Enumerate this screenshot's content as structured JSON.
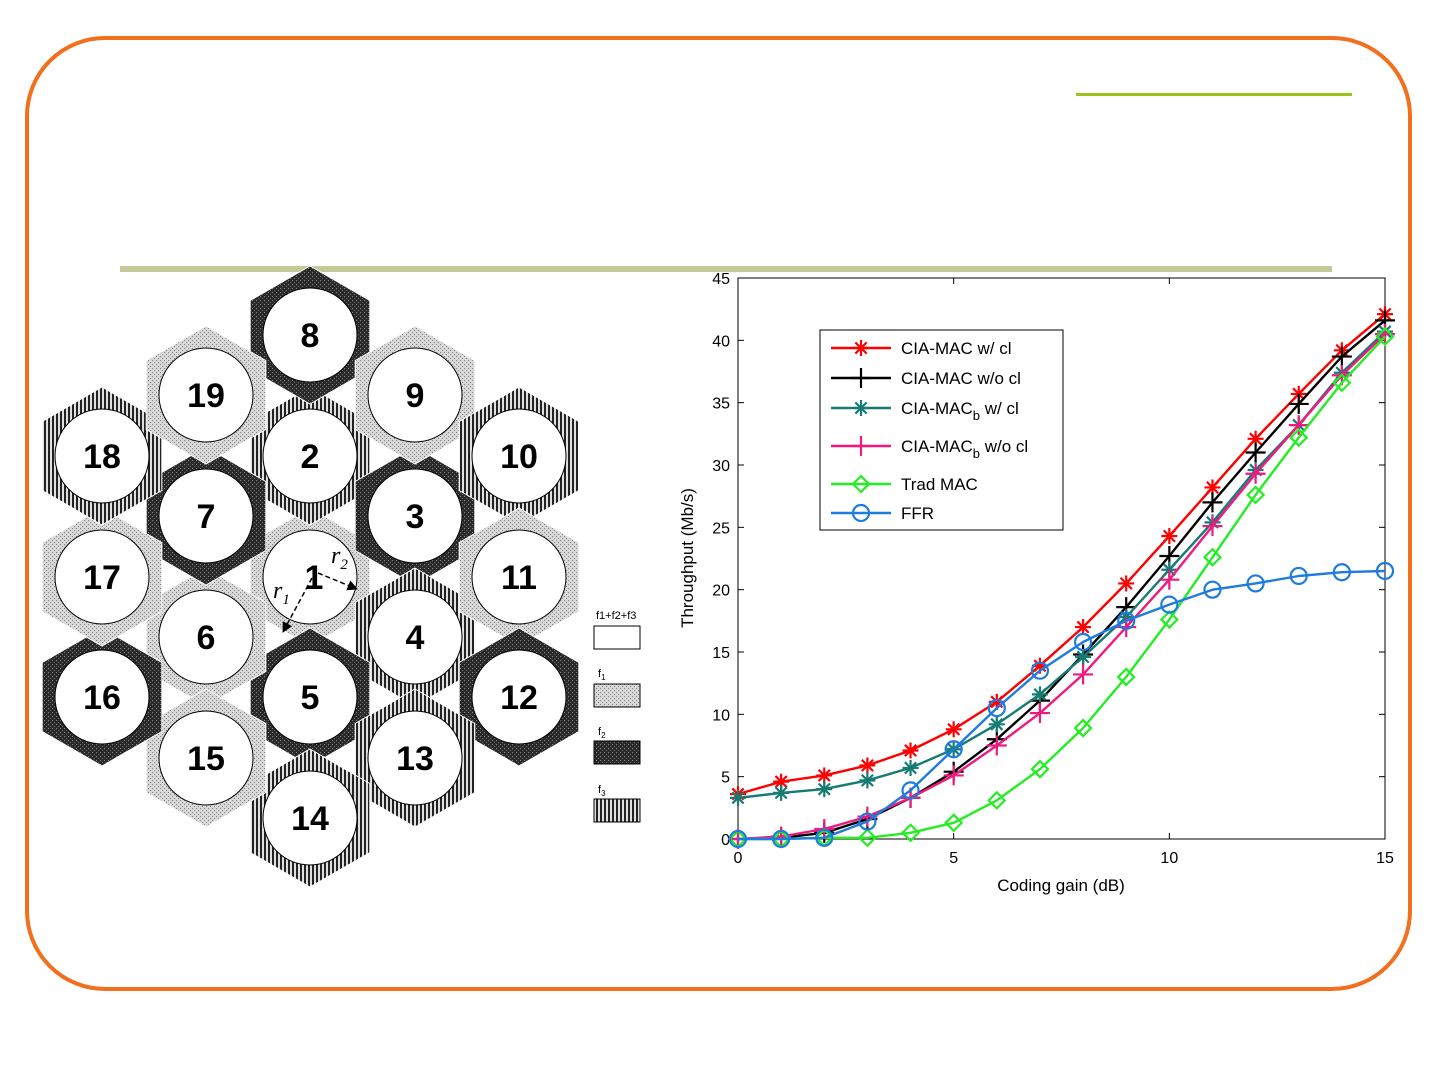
{
  "colors": {
    "frame": "#f26f1d",
    "accent_top": "#9cc31b",
    "accent_main": "#c6c89a"
  },
  "cell_diagram": {
    "cells": [
      "1",
      "2",
      "3",
      "4",
      "5",
      "6",
      "7",
      "8",
      "9",
      "10",
      "11",
      "12",
      "13",
      "14",
      "15",
      "16",
      "17",
      "18",
      "19"
    ],
    "radius_labels": {
      "r1": "r",
      "r1_sub": "1",
      "r2": "r",
      "r2_sub": "2"
    },
    "legend": [
      {
        "label": "f",
        "sub": "1",
        "extra": "+f2+f3",
        "pattern": "white"
      },
      {
        "label": "f",
        "sub": "1",
        "pattern": "light-dots"
      },
      {
        "label": "f",
        "sub": "2",
        "pattern": "dark-crosshatch"
      },
      {
        "label": "f",
        "sub": "3",
        "pattern": "vertical-stripes"
      }
    ],
    "legend_full_label": "f1+f2+f3"
  },
  "chart_data": {
    "type": "line",
    "xlabel": "Coding gain (dB)",
    "ylabel": "Throughput (Mb/s)",
    "xlim": [
      0,
      15
    ],
    "ylim": [
      0,
      45
    ],
    "xticks": [
      "0",
      "5",
      "10",
      "15"
    ],
    "yticks": [
      "0",
      "5",
      "10",
      "15",
      "20",
      "25",
      "30",
      "35",
      "40",
      "45"
    ],
    "grid": false,
    "legend_placement": "top-left",
    "x": [
      0,
      1,
      2,
      3,
      4,
      5,
      6,
      7,
      8,
      9,
      10,
      11,
      12,
      13,
      14,
      15
    ],
    "series": [
      {
        "name": "CIA-MAC w/ cl",
        "name_main": "CIA-MAC w/ cl",
        "name_sub": "",
        "name_tail": "",
        "color": "#ff0000",
        "marker": "asterisk",
        "values": [
          3.6,
          4.6,
          5.1,
          5.9,
          7.1,
          8.8,
          11.0,
          13.9,
          17.0,
          20.5,
          24.3,
          28.2,
          32.1,
          35.7,
          39.2,
          42.1
        ]
      },
      {
        "name": "CIA-MAC w/o cl",
        "name_main": "CIA-MAC w/o cl",
        "name_sub": "",
        "name_tail": "",
        "color": "#000000",
        "marker": "plus",
        "values": [
          0.0,
          0.1,
          0.5,
          1.6,
          3.3,
          5.4,
          8.0,
          11.1,
          14.8,
          18.6,
          22.7,
          27.0,
          31.0,
          34.9,
          38.7,
          41.6
        ]
      },
      {
        "name": "CIA-MACb w/ cl",
        "name_main": "CIA-MAC",
        "name_sub": "b",
        "name_tail": " w/ cl",
        "color": "#167b73",
        "marker": "asterisk",
        "values": [
          3.3,
          3.7,
          4.0,
          4.7,
          5.7,
          7.2,
          9.2,
          11.6,
          14.6,
          17.8,
          21.6,
          25.4,
          29.6,
          33.2,
          37.4,
          40.7
        ]
      },
      {
        "name": "CIA-MACb w/o cl",
        "name_main": "CIA-MAC",
        "name_sub": "b",
        "name_tail": " w/o cl",
        "color": "#ef1a7f",
        "marker": "plus",
        "values": [
          0.0,
          0.2,
          0.8,
          1.8,
          3.3,
          5.1,
          7.5,
          10.1,
          13.2,
          17.0,
          20.8,
          25.1,
          29.3,
          33.2,
          37.2,
          40.5
        ]
      },
      {
        "name": "Trad MAC",
        "name_main": "Trad MAC",
        "name_sub": "",
        "name_tail": "",
        "color": "#22ee22",
        "marker": "diamond",
        "values": [
          0.0,
          0.0,
          0.1,
          0.1,
          0.5,
          1.3,
          3.1,
          5.6,
          8.9,
          13.0,
          17.6,
          22.6,
          27.6,
          32.2,
          36.6,
          40.3
        ]
      },
      {
        "name": "FFR",
        "name_main": "FFR",
        "name_sub": "",
        "name_tail": "",
        "color": "#1e7be0",
        "marker": "circle",
        "values": [
          0.0,
          0.0,
          0.1,
          1.4,
          3.9,
          7.2,
          10.5,
          13.5,
          15.8,
          17.5,
          18.8,
          20.0,
          20.5,
          21.1,
          21.4,
          21.5
        ]
      }
    ]
  }
}
